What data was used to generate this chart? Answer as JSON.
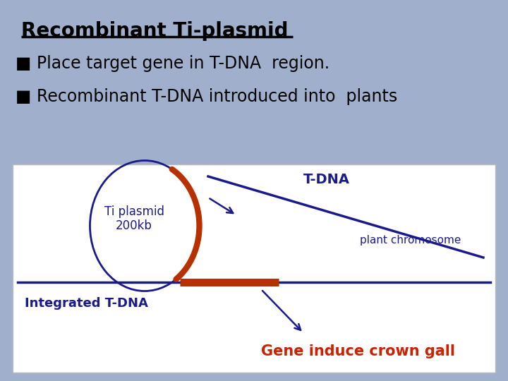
{
  "bg_color": "#a0b0cc",
  "title": "Recombinant Ti-plasmid",
  "title_fontsize": 20,
  "title_color": "#000000",
  "bullet1": "■ Place target gene in T-DNA  region.",
  "bullet2": "■ Recombinant T-DNA introduced into  plants",
  "bullet_fontsize": 17,
  "diagram_bg": "#ffffff",
  "circle_color": "#1a1a8a",
  "ti_plasmid_text": "Ti plasmid\n200kb",
  "ti_plasmid_color": "#1a1a8a",
  "tdna_label": "T-DNA",
  "tdna_label_color": "#1a1a8a",
  "chrom_label": "plant chromosome",
  "chrom_label_color": "#1a1a8a",
  "chrom_line_color": "#1a1a8a",
  "arc_color": "#b83000",
  "integrated_line_color": "#1a1a8a",
  "integrated_insert_color": "#b83000",
  "arrow_color": "#1a1a8a",
  "integrated_label": "Integrated T-DNA",
  "integrated_label_color": "#1a1a8a",
  "integrated_label_fontsize": 13,
  "crown_gall_label": "Gene induce crown gall",
  "crown_gall_color": "#cc2200",
  "crown_gall_fontsize": 15
}
